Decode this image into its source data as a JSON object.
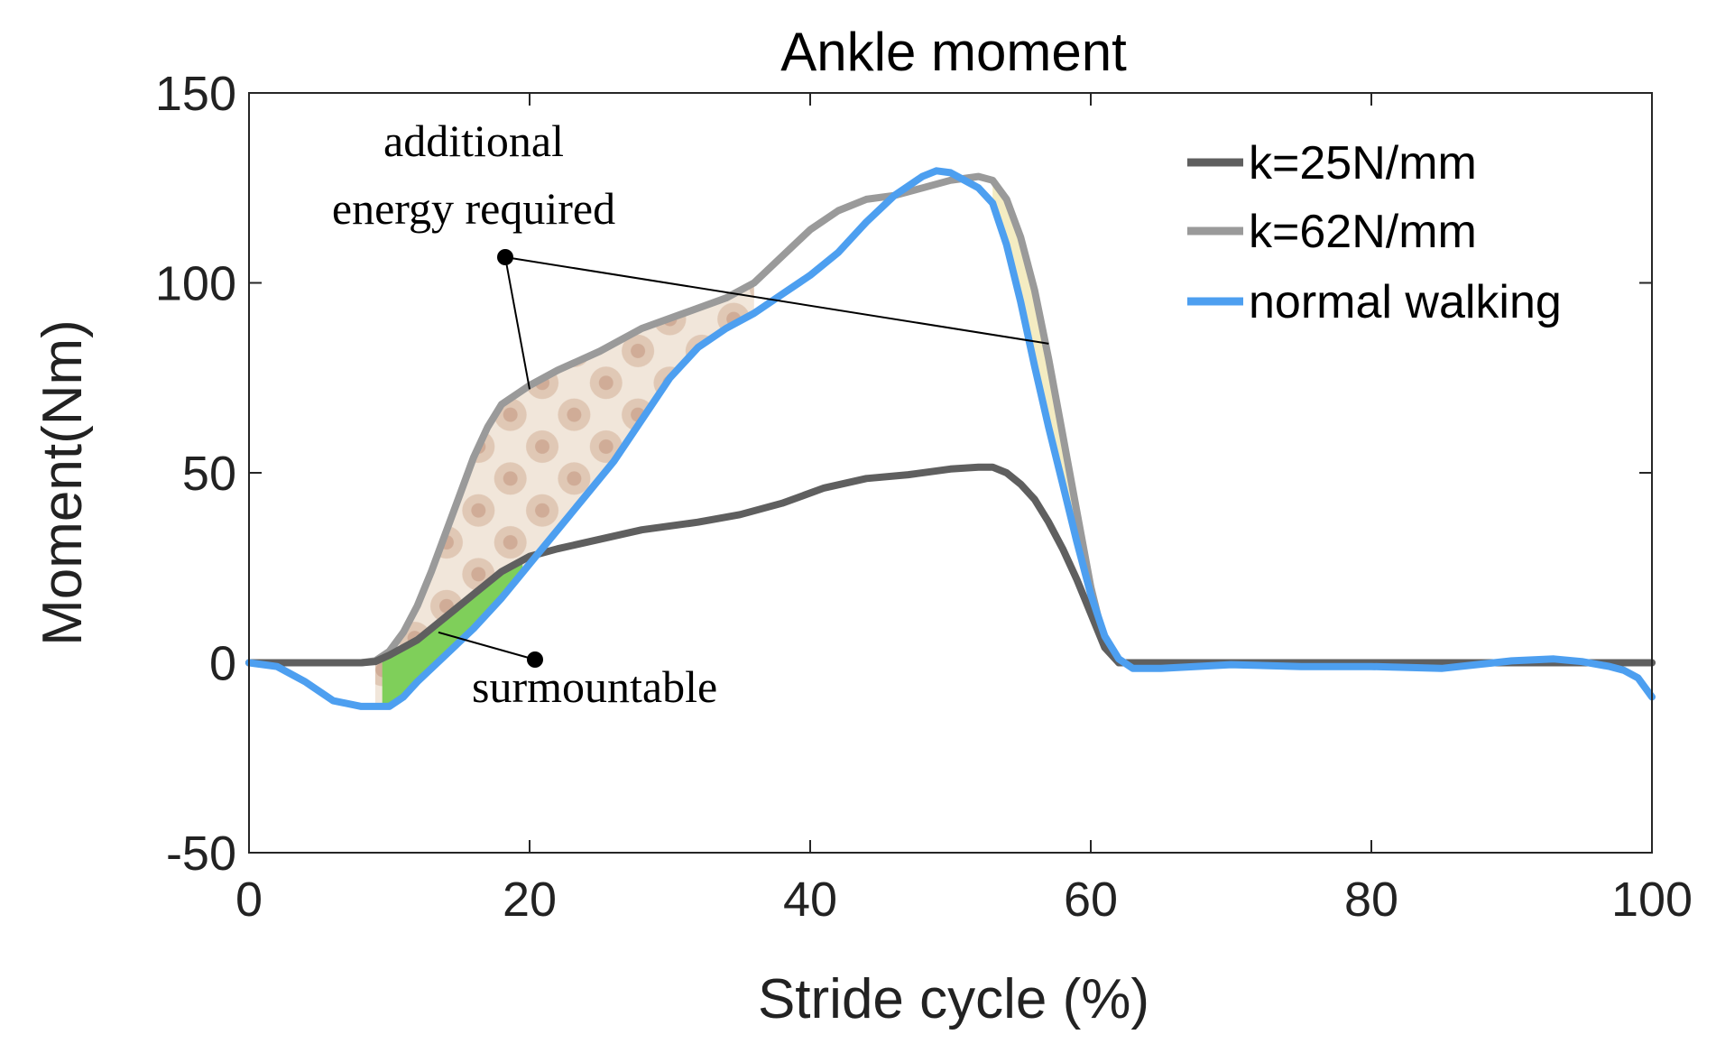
{
  "chart_data": {
    "type": "line",
    "title": "Ankle moment",
    "xlabel": "Stride cycle (%)",
    "ylabel": "Moment(Nm)",
    "xlim": [
      0,
      100
    ],
    "ylim": [
      -50,
      150
    ],
    "xticks": [
      0,
      20,
      40,
      60,
      80,
      100
    ],
    "yticks": [
      -50,
      0,
      50,
      100,
      150
    ],
    "xtick_labels": [
      "0",
      "20",
      "40",
      "60",
      "80",
      "100"
    ],
    "ytick_labels": [
      "-50",
      "0",
      "50",
      "100",
      "150"
    ],
    "legend_position": "top-right",
    "series": [
      {
        "name": "k=25N/mm",
        "color": "#5f5f5f",
        "x": [
          0,
          8,
          9,
          10,
          12,
          14,
          16,
          18,
          20,
          22,
          25,
          28,
          32,
          35,
          38,
          41,
          44,
          47,
          50,
          52,
          53,
          54,
          55,
          56,
          57,
          58,
          59,
          60,
          61,
          62,
          70,
          80,
          90,
          100
        ],
        "y": [
          0,
          0,
          0.3,
          2,
          6,
          12,
          18,
          24,
          28,
          30,
          32.5,
          35,
          37,
          39,
          42,
          46,
          48.5,
          49.5,
          51,
          51.5,
          51.5,
          50,
          47,
          43,
          37,
          30,
          22,
          13,
          4,
          0,
          0,
          0,
          0,
          0
        ]
      },
      {
        "name": "k=62N/mm",
        "color": "#9a9a9a",
        "x": [
          0,
          8,
          9,
          10,
          11,
          12,
          13,
          14,
          15,
          16,
          17,
          18,
          20,
          22,
          25,
          28,
          31,
          34,
          36,
          38,
          40,
          42,
          44,
          46,
          48,
          50,
          52,
          53,
          54,
          55,
          56,
          57,
          58,
          59,
          60,
          61,
          62,
          70,
          80,
          90,
          100
        ],
        "y": [
          0,
          0,
          0.5,
          3,
          8,
          15,
          24,
          34,
          44,
          54,
          62,
          68,
          73,
          77,
          82,
          88,
          92,
          96,
          100,
          107,
          114,
          119,
          122,
          123,
          125,
          127,
          128,
          127,
          122,
          112,
          98,
          80,
          60,
          40,
          20,
          5,
          0,
          0,
          0,
          0,
          0
        ]
      },
      {
        "name": "normal walking",
        "color": "#4d9ff0",
        "x": [
          0,
          2,
          4,
          6,
          8,
          10,
          11,
          12,
          14,
          16,
          18,
          20,
          22,
          24,
          26,
          28,
          30,
          32,
          34,
          36,
          38,
          40,
          42,
          44,
          46,
          48,
          49,
          50,
          51,
          52,
          53,
          54,
          55,
          56,
          57,
          58,
          59,
          60,
          61,
          62,
          63,
          65,
          70,
          75,
          80,
          85,
          90,
          93,
          95,
          97,
          98,
          99,
          100
        ],
        "y": [
          0,
          -1,
          -5,
          -10,
          -11.5,
          -11.5,
          -9,
          -5,
          2,
          9,
          17,
          26,
          35,
          44,
          53,
          64,
          75,
          83,
          88,
          92,
          97,
          102,
          108,
          116,
          123,
          128,
          129.5,
          129,
          127,
          125,
          121,
          110,
          95,
          78,
          62,
          47,
          32,
          18,
          7,
          1,
          -1.5,
          -1.5,
          -0.5,
          -1,
          -1,
          -1.5,
          0.5,
          1,
          0.3,
          -1,
          -2,
          -4,
          -9
        ]
      }
    ],
    "annotations": [
      {
        "text_line1": "additional",
        "text_line2": "energy required",
        "points_to": [
          [
            20,
            72
          ],
          [
            57,
            84
          ]
        ]
      },
      {
        "text": "surmountable",
        "points_to": [
          [
            13.5,
            8
          ]
        ]
      }
    ]
  }
}
